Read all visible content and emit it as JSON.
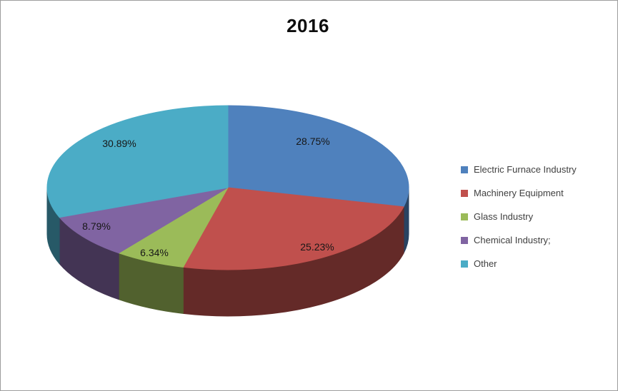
{
  "frame": {
    "background": "#ffffff",
    "border_color": "#9d9d9d"
  },
  "chart_data": {
    "type": "pie",
    "title": "2016",
    "is_3d": true,
    "start_angle_deg": 0,
    "direction": "clockwise",
    "legend_position": "right",
    "label_text_color": "#171717",
    "legend_text_color": "#3f3f3f",
    "segments": [
      {
        "label": "Electric Furnace Industry",
        "value": 28.75,
        "pct_label": "28.75%",
        "color": "#4F81BD"
      },
      {
        "label": "Machinery Equipment",
        "value": 25.23,
        "pct_label": "25.23%",
        "color": "#C0504D"
      },
      {
        "label": "Glass Industry",
        "value": 6.34,
        "pct_label": "6.34%",
        "color": "#9BBB59"
      },
      {
        "label": "Chemical Industry;",
        "value": 8.79,
        "pct_label": "8.79%",
        "color": "#8064A2"
      },
      {
        "label": "Other",
        "value": 30.89,
        "pct_label": "30.89%",
        "color": "#4BACC6"
      }
    ]
  }
}
